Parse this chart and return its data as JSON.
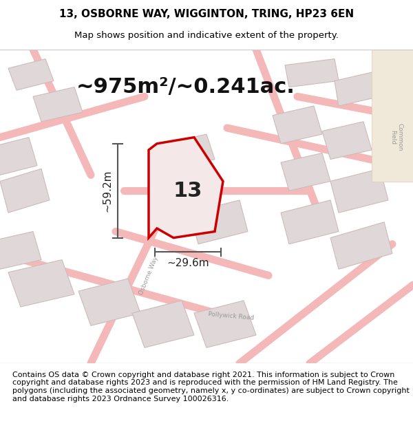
{
  "title_line1": "13, OSBORNE WAY, WIGGINTON, TRING, HP23 6EN",
  "title_line2": "Map shows position and indicative extent of the property.",
  "area_text": "~975m²/~0.241ac.",
  "label_number": "13",
  "dim_height": "~59.2m",
  "dim_width": "~29.6m",
  "footer_text": "Contains OS data © Crown copyright and database right 2021. This information is subject to Crown copyright and database rights 2023 and is reproduced with the permission of HM Land Registry. The polygons (including the associated geometry, namely x, y co-ordinates) are subject to Crown copyright and database rights 2023 Ordnance Survey 100026316.",
  "bg_color": "#ffffff",
  "map_bg_color": "#f9f5f5",
  "road_color": "#f5b8b8",
  "building_color": "#e0d8d8",
  "building_edge_color": "#ccbbbb",
  "highlight_color": "#cc0000",
  "highlight_fill": "#f5e8e8",
  "dim_color": "#555555",
  "road_label_color": "#999999",
  "title_fontsize": 11,
  "subtitle_fontsize": 9.5,
  "area_fontsize": 22,
  "label_fontsize": 22,
  "dim_fontsize": 11,
  "footer_fontsize": 8,
  "figsize": [
    6.0,
    6.25
  ],
  "dpi": 100
}
